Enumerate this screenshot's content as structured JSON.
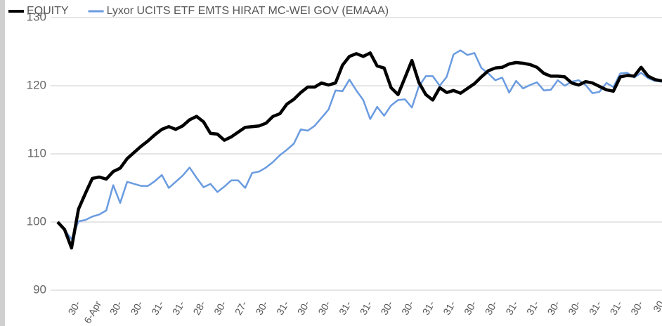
{
  "chart_data": {
    "type": "line",
    "categories": [
      null,
      null,
      null,
      "30-",
      null,
      null,
      "6-Apr",
      null,
      null,
      "30-",
      null,
      null,
      "30-",
      null,
      null,
      "31-",
      null,
      null,
      "31-",
      null,
      null,
      "28-",
      null,
      null,
      "30-",
      null,
      null,
      "27-",
      null,
      null,
      "30-",
      null,
      null,
      "31-",
      null,
      null,
      "30-",
      null,
      null,
      "30-",
      null,
      null,
      "31-",
      null,
      null,
      "31-",
      null,
      null,
      "30-",
      null,
      null,
      "30-",
      null,
      null,
      "31-",
      null,
      null,
      "31-",
      null,
      null,
      "30-",
      null,
      null,
      "30-",
      null,
      null,
      "31-",
      null,
      null,
      "31-",
      null,
      null,
      "30-",
      null,
      null,
      "30-",
      null,
      null,
      "31-",
      null,
      null,
      "31-",
      null,
      null,
      "30-",
      null,
      null,
      "30"
    ],
    "series": [
      {
        "name": "EQUITY",
        "color": "#000000",
        "values": [
          100,
          98.9,
          96.2,
          101.9,
          104.2,
          106.4,
          106.6,
          106.3,
          107.4,
          107.9,
          109.3,
          110.2,
          111.1,
          111.9,
          112.8,
          113.6,
          114,
          113.6,
          114.1,
          115,
          115.5,
          114.7,
          113,
          112.9,
          112,
          112.5,
          113.2,
          113.9,
          114,
          114.1,
          114.5,
          115.5,
          115.9,
          117.3,
          118,
          119,
          119.8,
          119.8,
          120.4,
          120.1,
          120.4,
          123,
          124.3,
          124.7,
          124.3,
          124.8,
          122.9,
          122.6,
          119.7,
          118.7,
          121.2,
          123.7,
          120.5,
          118.7,
          117.9,
          119.7,
          119,
          119.3,
          118.9,
          119.6,
          120.3,
          121.3,
          122.2,
          122.6,
          122.7,
          123.2,
          123.4,
          123.3,
          123.1,
          122.7,
          121.8,
          121.4,
          121.4,
          121.3,
          120.4,
          120.1,
          120.6,
          120.4,
          119.9,
          119.4,
          119.2,
          121.3,
          121.5,
          121.4,
          122.7,
          121.4,
          120.9,
          120.7
        ]
      },
      {
        "name": "Lyxor UCITS ETF EMTS HIRAT MC-WEI GOV (EMAAA)",
        "color": "#6a9be0",
        "values": [
          100,
          98.8,
          97.5,
          100.1,
          100.3,
          100.8,
          101.1,
          101.7,
          105.4,
          102.8,
          105.9,
          105.6,
          105.3,
          105.3,
          106,
          106.9,
          105,
          105.9,
          106.8,
          108,
          106.5,
          105.1,
          105.6,
          104.4,
          105.2,
          106.1,
          106.1,
          105,
          107.2,
          107.4,
          108,
          108.8,
          109.8,
          110.6,
          111.5,
          113.6,
          113.4,
          114.1,
          115.3,
          116.5,
          119.3,
          119.2,
          120.9,
          119.3,
          117.9,
          115.1,
          116.9,
          115.6,
          117.1,
          117.9,
          118,
          116.8,
          119.9,
          121.4,
          121.4,
          120,
          121.3,
          124.6,
          125.2,
          124.5,
          124.8,
          122.6,
          121.8,
          120.8,
          121.2,
          119,
          120.7,
          119.6,
          120.1,
          120.5,
          119.3,
          119.4,
          120.8,
          120,
          120.6,
          120.8,
          120.1,
          118.9,
          119.1,
          120.4,
          119.8,
          121.8,
          121.9,
          121.2,
          121.9,
          121.1,
          120.7,
          120.6
        ]
      }
    ],
    "ylim": [
      90,
      130
    ],
    "yticks": [
      90,
      100,
      110,
      120,
      130
    ],
    "grid": true
  }
}
